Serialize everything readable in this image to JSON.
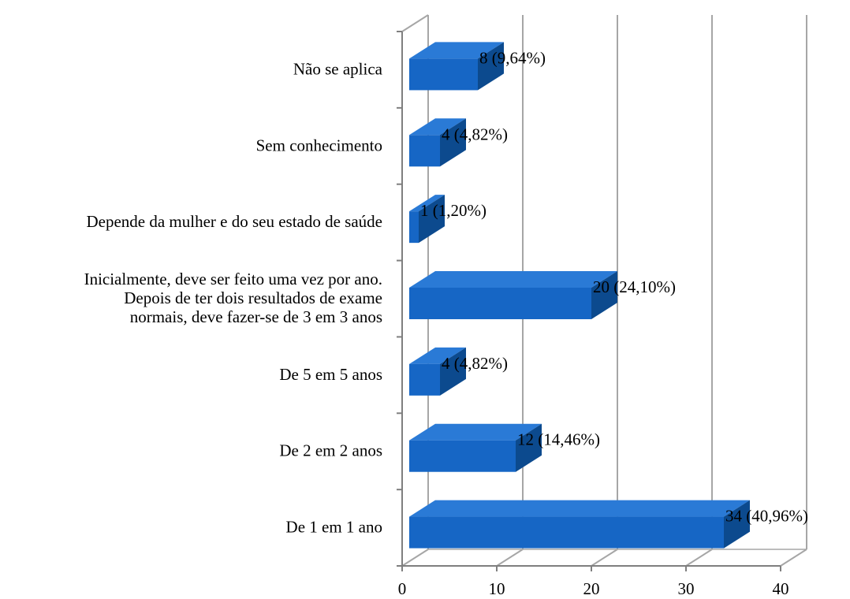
{
  "chart_data": {
    "type": "bar",
    "orientation": "horizontal",
    "style": "3d",
    "categories": [
      [
        "Não se aplica"
      ],
      [
        "Sem conhecimento"
      ],
      [
        "Depende da mulher e do seu estado de saúde"
      ],
      [
        "Inicialmente, deve ser feito uma vez por ano.",
        "Depois de ter dois resultados de exame",
        "normais, deve fazer-se de 3 em 3 anos"
      ],
      [
        "De 5 em 5 anos"
      ],
      [
        "De 2 em 2 anos"
      ],
      [
        "De 1 em 1 ano"
      ]
    ],
    "values": [
      8,
      4,
      1,
      20,
      4,
      12,
      34
    ],
    "data_labels": [
      "8 (9,64%)",
      "4 (4,82%)",
      "1 (1,20%)",
      "20 (24,10%)",
      "4 (4,82%)",
      "12 (14,46%)",
      "34 (40,96%)"
    ],
    "xlim": [
      0,
      40
    ],
    "xticks": [
      0,
      10,
      20,
      30,
      40
    ],
    "grid": "vertical",
    "legend": "none",
    "colors": {
      "bar_front": "#1666c5",
      "bar_top": "#2a7ad6",
      "bar_side": "#0c4a8e",
      "grid": "#a6a6a6",
      "axis": "#7f7f7f"
    }
  }
}
